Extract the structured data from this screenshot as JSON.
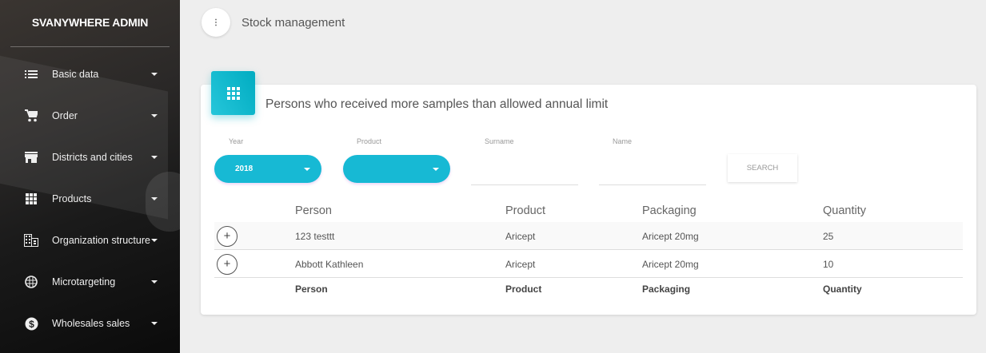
{
  "sidebar": {
    "brand": "SVANYWHERE ADMIN",
    "items": [
      {
        "label": "Basic data",
        "icon": "list-icon"
      },
      {
        "label": "Order",
        "icon": "cart-icon"
      },
      {
        "label": "Districts and cities",
        "icon": "store-icon"
      },
      {
        "label": "Products",
        "icon": "grid-icon"
      },
      {
        "label": "Organization structure",
        "icon": "building-icon"
      },
      {
        "label": "Microtargeting",
        "icon": "globe-icon"
      },
      {
        "label": "Wholesales sales",
        "icon": "dollar-icon"
      }
    ]
  },
  "header": {
    "menu_icon": "more-vert-icon",
    "title": "Stock management"
  },
  "card": {
    "icon": "grid-icon",
    "accent": "#17b9d4",
    "title": "Persons who received more samples than allowed annual limit",
    "filters": {
      "year": {
        "label": "Year",
        "value": "2018"
      },
      "product": {
        "label": "Product",
        "value": ""
      },
      "surname": {
        "label": "Surname",
        "value": ""
      },
      "name": {
        "label": "Name",
        "value": ""
      },
      "search_label": "SEARCH"
    },
    "table": {
      "columns": [
        "Person",
        "Product",
        "Packaging",
        "Quantity"
      ],
      "rows": [
        [
          "123 testtt",
          "Aricept",
          "Aricept 20mg",
          "25"
        ],
        [
          "Abbott Kathleen",
          "Aricept",
          "Aricept 20mg",
          "10"
        ]
      ],
      "footer": [
        "Person",
        "Product",
        "Packaging",
        "Quantity"
      ]
    }
  }
}
